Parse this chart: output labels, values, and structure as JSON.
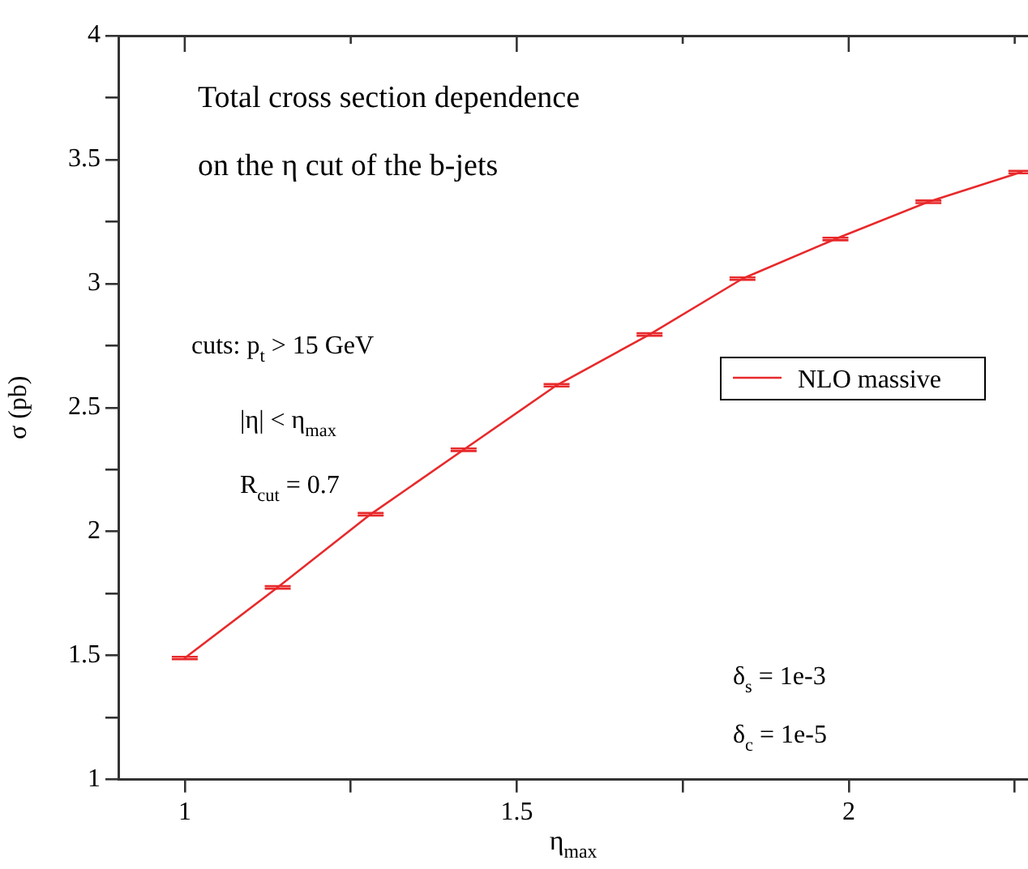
{
  "chart_data": {
    "type": "line",
    "xlabel": "η$_{max}$",
    "ylabel": "σ (pb)",
    "x": [
      1,
      1.14,
      1.28,
      1.42,
      1.56,
      1.7,
      1.84,
      1.98,
      2.12,
      2.26
    ],
    "series": [
      {
        "name": "NLO massive",
        "color": "#e8292b",
        "values": [
          1.49,
          1.775,
          2.07,
          2.33,
          2.59,
          2.795,
          3.02,
          3.18,
          3.33,
          3.45
        ],
        "errors": [
          0.005,
          0.005,
          0.005,
          0.005,
          0.005,
          0.005,
          0.005,
          0.005,
          0.005,
          0.005
        ]
      }
    ],
    "xlim": [
      0.9,
      2.27
    ],
    "xticks": [
      1,
      {
        "value": 1.25,
        "label": null
      },
      1.5,
      {
        "value": 1.75,
        "label": null
      },
      2,
      {
        "value": 2.25,
        "label": null
      }
    ],
    "ylim": [
      1,
      4
    ],
    "yticks": [
      1,
      {
        "value": 1.25,
        "label": null
      },
      1.5,
      {
        "value": 1.75,
        "label": null
      },
      2,
      {
        "value": 2.25,
        "label": null
      },
      2.5,
      {
        "value": 2.75,
        "label": null
      },
      3,
      {
        "value": 3.25,
        "label": null
      },
      3.5,
      {
        "value": 3.75,
        "label": null
      },
      4
    ],
    "grid": false,
    "legend": "right",
    "marker": "none",
    "line_style": "solid",
    "annotations": [
      "Total cross section dependence",
      "on the η cut of the b-jets",
      "cuts: p$_{t}$ > 15 GeV",
      "|η| < η$_{max}$",
      "R$_{cut}$ = 0.7",
      "δ$_{s}$ = 1e-3",
      "δ$_{c}$ = 1e-5"
    ]
  }
}
